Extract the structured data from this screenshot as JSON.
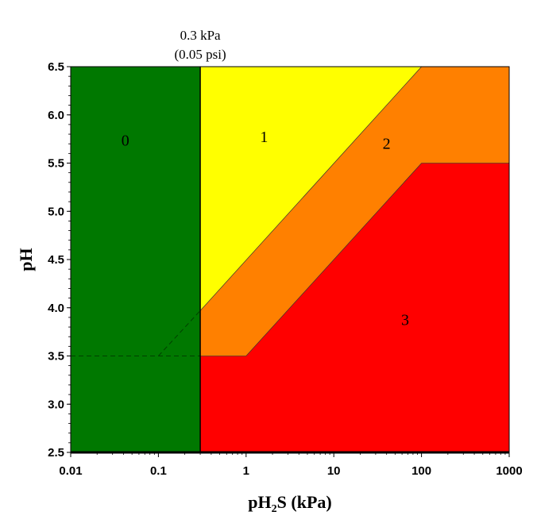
{
  "chart_data": {
    "type": "area",
    "title": "",
    "xlabel": {
      "base": "pH",
      "sub": "2",
      "tail": "S (kPa)"
    },
    "ylabel": "pH",
    "xscale": "log",
    "xlim": [
      0.01,
      1000
    ],
    "ylim": [
      2.5,
      6.5
    ],
    "x_ticks": [
      {
        "value": 0.01,
        "label": "0.01"
      },
      {
        "value": 0.1,
        "label": "0.1"
      },
      {
        "value": 1,
        "label": "1"
      },
      {
        "value": 10,
        "label": "10"
      },
      {
        "value": 100,
        "label": "100"
      },
      {
        "value": 1000,
        "label": "1000"
      }
    ],
    "y_ticks": [
      {
        "value": 2.5,
        "label": "2.5"
      },
      {
        "value": 3.0,
        "label": "3.0"
      },
      {
        "value": 3.5,
        "label": "3.5"
      },
      {
        "value": 4.0,
        "label": "4.0"
      },
      {
        "value": 4.5,
        "label": "4.5"
      },
      {
        "value": 5.0,
        "label": "5.0"
      },
      {
        "value": 5.5,
        "label": "5.5"
      },
      {
        "value": 6.0,
        "label": "6.0"
      },
      {
        "value": 6.5,
        "label": "6.5"
      }
    ],
    "grid": false,
    "regions": [
      {
        "label": "0",
        "color": "#007800",
        "points": [
          [
            0.01,
            2.5
          ],
          [
            0.3,
            2.5
          ],
          [
            0.3,
            6.5
          ],
          [
            0.01,
            6.5
          ]
        ],
        "label_at": [
          0.042,
          5.68
        ]
      },
      {
        "label": "3",
        "color": "#ff0000",
        "points": [
          [
            0.3,
            2.5
          ],
          [
            1000,
            2.5
          ],
          [
            1000,
            5.5
          ],
          [
            100,
            5.5
          ],
          [
            1,
            3.5
          ],
          [
            0.3,
            3.5
          ]
        ],
        "label_at": [
          65,
          3.82
        ]
      },
      {
        "label": "2",
        "color": "#ff8000",
        "points": [
          [
            0.3,
            3.5
          ],
          [
            1,
            3.5
          ],
          [
            100,
            5.5
          ],
          [
            1000,
            5.5
          ],
          [
            1000,
            6.5
          ],
          [
            100,
            6.5
          ],
          [
            0.3,
            3.97
          ]
        ],
        "label_at": [
          40,
          5.65
        ]
      },
      {
        "label": "1",
        "color": "#ffff00",
        "points": [
          [
            0.3,
            3.97
          ],
          [
            100,
            6.5
          ],
          [
            0.3,
            6.5
          ]
        ],
        "label_at": [
          1.6,
          5.72
        ]
      }
    ],
    "boundary_line": {
      "x": 0.3,
      "color": "#000000"
    },
    "dashed_extensions": [
      {
        "points": [
          [
            0.01,
            3.5
          ],
          [
            0.3,
            3.5
          ]
        ]
      },
      {
        "points": [
          [
            0.1,
            3.5
          ],
          [
            0.3,
            3.97
          ]
        ]
      }
    ],
    "annotations": [
      {
        "text": "0.3 kPa",
        "line": 1
      },
      {
        "text": "(0.05 psi)",
        "line": 2
      }
    ]
  }
}
